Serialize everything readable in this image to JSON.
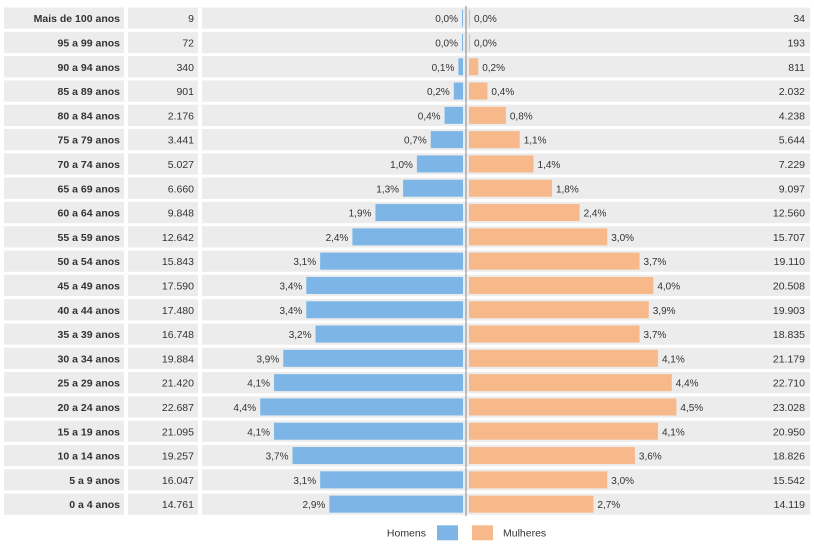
{
  "chart_data": {
    "type": "bar",
    "orientation": "horizontal-population-pyramid",
    "categories": [
      "Mais de 100 anos",
      "95 a 99 anos",
      "90 a 94 anos",
      "85 a 89 anos",
      "80 a 84 anos",
      "75 a 79 anos",
      "70 a 74 anos",
      "65 a 69 anos",
      "60 a 64 anos",
      "55 a 59 anos",
      "50 a 54 anos",
      "45 a 49 anos",
      "40 a 44 anos",
      "35 a 39 anos",
      "30 a 34 anos",
      "25 a 29 anos",
      "20 a 24 anos",
      "15 a 19 anos",
      "10 a 14 anos",
      "5 a 9 anos",
      "0 a 4 anos"
    ],
    "series": [
      {
        "name": "Homens",
        "color": "#7db6e6",
        "counts": [
          "9",
          "72",
          "340",
          "901",
          "2.176",
          "3.441",
          "5.027",
          "6.660",
          "9.848",
          "12.642",
          "15.843",
          "17.590",
          "17.480",
          "16.748",
          "19.884",
          "21.420",
          "22.687",
          "21.095",
          "19.257",
          "16.047",
          "14.761"
        ],
        "percents": [
          "0,0%",
          "0,0%",
          "0,1%",
          "0,2%",
          "0,4%",
          "0,7%",
          "1,0%",
          "1,3%",
          "1,9%",
          "2,4%",
          "3,1%",
          "3,4%",
          "3,4%",
          "3,2%",
          "3,9%",
          "4,1%",
          "4,4%",
          "4,1%",
          "3,7%",
          "3,1%",
          "2,9%"
        ],
        "values": [
          0.0,
          0.0,
          0.1,
          0.2,
          0.4,
          0.7,
          1.0,
          1.3,
          1.9,
          2.4,
          3.1,
          3.4,
          3.4,
          3.2,
          3.9,
          4.1,
          4.4,
          4.1,
          3.7,
          3.1,
          2.9
        ]
      },
      {
        "name": "Mulheres",
        "color": "#f7b98a",
        "counts": [
          "34",
          "193",
          "811",
          "2.032",
          "4.238",
          "5.644",
          "7.229",
          "9.097",
          "12.560",
          "15.707",
          "19.110",
          "20.508",
          "19.903",
          "18.835",
          "21.179",
          "22.710",
          "23.028",
          "20.950",
          "18.826",
          "15.542",
          "14.119"
        ],
        "percents": [
          "0,0%",
          "0,0%",
          "0,2%",
          "0,4%",
          "0,8%",
          "1,1%",
          "1,4%",
          "1,8%",
          "2,4%",
          "3,0%",
          "3,7%",
          "4,0%",
          "3,9%",
          "3,7%",
          "4,1%",
          "4,4%",
          "4,5%",
          "4,1%",
          "3,6%",
          "3,0%",
          "2,7%"
        ],
        "values": [
          0.0,
          0.0,
          0.2,
          0.4,
          0.8,
          1.1,
          1.4,
          1.8,
          2.4,
          3.0,
          3.7,
          4.0,
          3.9,
          3.7,
          4.1,
          4.4,
          4.5,
          4.1,
          3.6,
          3.0,
          2.7
        ]
      }
    ],
    "xlim": [
      0,
      4.6
    ],
    "legend_position": "bottom-center",
    "row_stripes": true
  },
  "colors": {
    "stripe": "#ececec",
    "axis": "#888888",
    "men": "#7db6e6",
    "women": "#f7b98a"
  }
}
